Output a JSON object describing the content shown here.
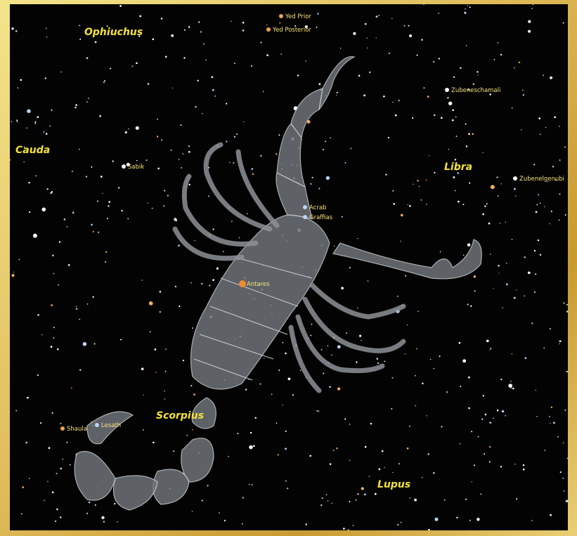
{
  "constellations": [
    "Ophiuchus",
    "Cauda",
    "Libra",
    "Scorpius",
    "Lupus"
  ],
  "stars": [
    "Yed Prior",
    "Yed Posterior",
    "Zubeneschamali",
    "Sabik",
    "Zubenelgenubi",
    "Acrab",
    "Graffias",
    "Antares",
    "Shaula",
    "Lesath"
  ]
}
